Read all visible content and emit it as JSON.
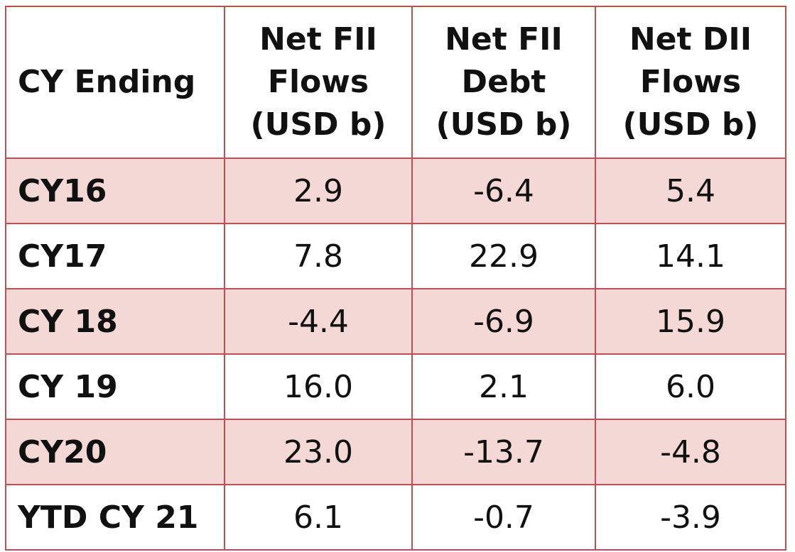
{
  "chart_data": {
    "type": "table",
    "columns": [
      {
        "lines": [
          "CY Ending"
        ]
      },
      {
        "lines": [
          "Net FII",
          "Flows",
          "(USD b)"
        ]
      },
      {
        "lines": [
          "Net FII",
          "Debt",
          "(USD b)"
        ]
      },
      {
        "lines": [
          "Net DII",
          "Flows",
          "(USD b)"
        ]
      }
    ],
    "rows": [
      {
        "label": "CY16",
        "values": [
          "2.9",
          "-6.4",
          "5.4"
        ]
      },
      {
        "label": "CY17",
        "values": [
          "7.8",
          "22.9",
          "14.1"
        ]
      },
      {
        "label": "CY 18",
        "values": [
          "-4.4",
          "-6.9",
          "15.9"
        ]
      },
      {
        "label": "CY 19",
        "values": [
          "16.0",
          "2.1",
          "6.0"
        ]
      },
      {
        "label": "CY20",
        "values": [
          "23.0",
          "-13.7",
          "-4.8"
        ]
      },
      {
        "label": "YTD CY 21",
        "values": [
          "6.1",
          "-0.7",
          "-3.9"
        ]
      }
    ],
    "shaded_rows": [
      0,
      2,
      4
    ],
    "colors": {
      "border": "#c0504d",
      "shade": "#f4d8d6",
      "text": "#111111"
    }
  }
}
